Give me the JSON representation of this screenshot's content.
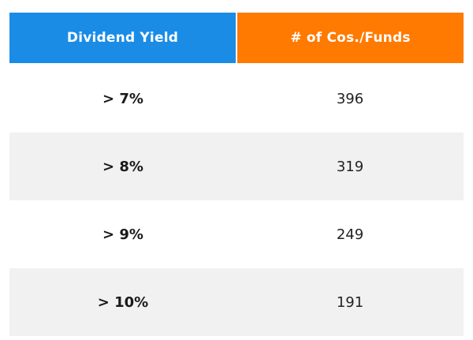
{
  "chart_data": {
    "type": "table",
    "columns": [
      "Dividend Yield",
      "# of Cos./Funds"
    ],
    "header_colors": [
      "#1a8ce6",
      "#ff7a00"
    ],
    "row_shading": [
      "#ffffff",
      "#f1f1f1"
    ],
    "rows": [
      {
        "yield": "> 7%",
        "count": 396
      },
      {
        "yield": "> 8%",
        "count": 319
      },
      {
        "yield": "> 9%",
        "count": 249
      },
      {
        "yield": "> 10%",
        "count": 191
      }
    ]
  }
}
